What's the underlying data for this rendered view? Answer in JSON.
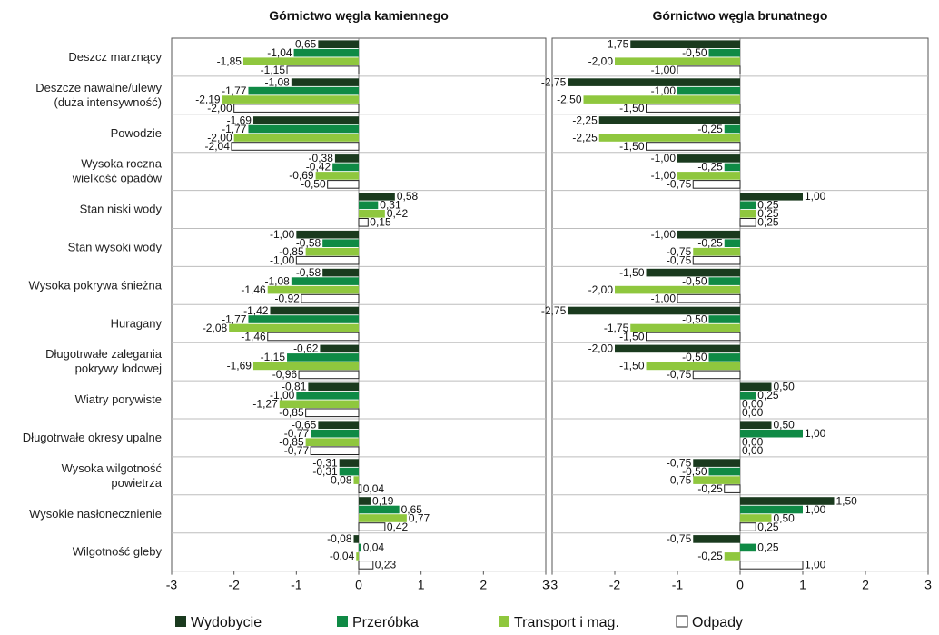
{
  "chart_data": {
    "type": "bar",
    "orientation": "horizontal",
    "xlim": [
      -3,
      3
    ],
    "ticks": [
      "-3",
      "-2",
      "-1",
      "0",
      "1",
      "2",
      "3"
    ],
    "categories": [
      [
        "Deszcz marznący"
      ],
      [
        "Deszcze nawalne/ulewy",
        "(duża intensywność)"
      ],
      [
        "Powodzie"
      ],
      [
        "Wysoka roczna",
        "wielkość opadów"
      ],
      [
        "Stan niski wody"
      ],
      [
        "Stan wysoki wody"
      ],
      [
        "Wysoka pokrywa śnieżna"
      ],
      [
        "Huragany"
      ],
      [
        "Długotrwałe zalegania",
        "pokrywy lodowej"
      ],
      [
        "Wiatry porywiste"
      ],
      [
        "Długotrwałe okresy upalne"
      ],
      [
        "Wysoka wilgotność",
        "powietrza"
      ],
      [
        "Wysokie nasłonecznienie"
      ],
      [
        "Wilgotność gleby"
      ]
    ],
    "series_meta": [
      {
        "name": "Wydobycie",
        "color": "#1a3a1e"
      },
      {
        "name": "Przeróbka",
        "color": "#0f8a45"
      },
      {
        "name": "Transport i mag.",
        "color": "#8fc73e"
      },
      {
        "name": "Odpady",
        "color": "#ffffff"
      }
    ],
    "panels": [
      {
        "title": "Górnictwo węgla kamiennego",
        "series": [
          {
            "name": "Wydobycie",
            "values": [
              "-0,65",
              "-1,08",
              "-1,69",
              "-0,38",
              "0,58",
              "-1,00",
              "-0,58",
              "-1,42",
              "-0,62",
              "-0,81",
              "-0,65",
              "-0,31",
              "0,19",
              "-0,08"
            ]
          },
          {
            "name": "Przeróbka",
            "values": [
              "-1,04",
              "-1,77",
              "-1,77",
              "-0,42",
              "0,31",
              "-0,58",
              "-1,08",
              "-1,77",
              "-1,15",
              "-1,00",
              "-0,77",
              "-0,31",
              "0,65",
              "0,04"
            ]
          },
          {
            "name": "Transport i mag.",
            "values": [
              "-1,85",
              "-2,19",
              "-2,00",
              "-0,69",
              "0,42",
              "-0,85",
              "-1,46",
              "-2,08",
              "-1,69",
              "-1,27",
              "-0,85",
              "-0,08",
              "0,77",
              "-0,04"
            ]
          },
          {
            "name": "Odpady",
            "values": [
              "-1,15",
              "-2,00",
              "-2,04",
              "-0,50",
              "0,15",
              "-1,00",
              "-0,92",
              "-1,46",
              "-0,96",
              "-0,85",
              "-0,77",
              "0,04",
              "0,42",
              "0,23"
            ]
          }
        ]
      },
      {
        "title": "Górnictwo węgla brunatnego",
        "series": [
          {
            "name": "Wydobycie",
            "values": [
              "-1,75",
              "-2,75",
              "-2,25",
              "-1,00",
              "1,00",
              "-1,00",
              "-1,50",
              "-2,75",
              "-2,00",
              "0,50",
              "0,50",
              "-0,75",
              "1,50",
              "-0,75"
            ]
          },
          {
            "name": "Przeróbka",
            "values": [
              "-0,50",
              "-1,00",
              "-0,25",
              "-0,25",
              "0,25",
              "-0,25",
              "-0,50",
              "-0,50",
              "-0,50",
              "0,25",
              "1,00",
              "-0,50",
              "1,00",
              "0,25"
            ]
          },
          {
            "name": "Transport i mag.",
            "values": [
              "-2,00",
              "-2,50",
              "-2,25",
              "-1,00",
              "0,25",
              "-0,75",
              "-2,00",
              "-1,75",
              "-1,50",
              "0,00",
              "0,00",
              "-0,75",
              "0,50",
              "-0,25"
            ]
          },
          {
            "name": "Odpady",
            "values": [
              "-1,00",
              "-1,50",
              "-1,50",
              "-0,75",
              "0,25",
              "-0,75",
              "-1,00",
              "-1,50",
              "-0,75",
              "0,00",
              "0,00",
              "-0,25",
              "0,25",
              "1,00"
            ]
          }
        ]
      }
    ],
    "legend_position": "bottom"
  }
}
